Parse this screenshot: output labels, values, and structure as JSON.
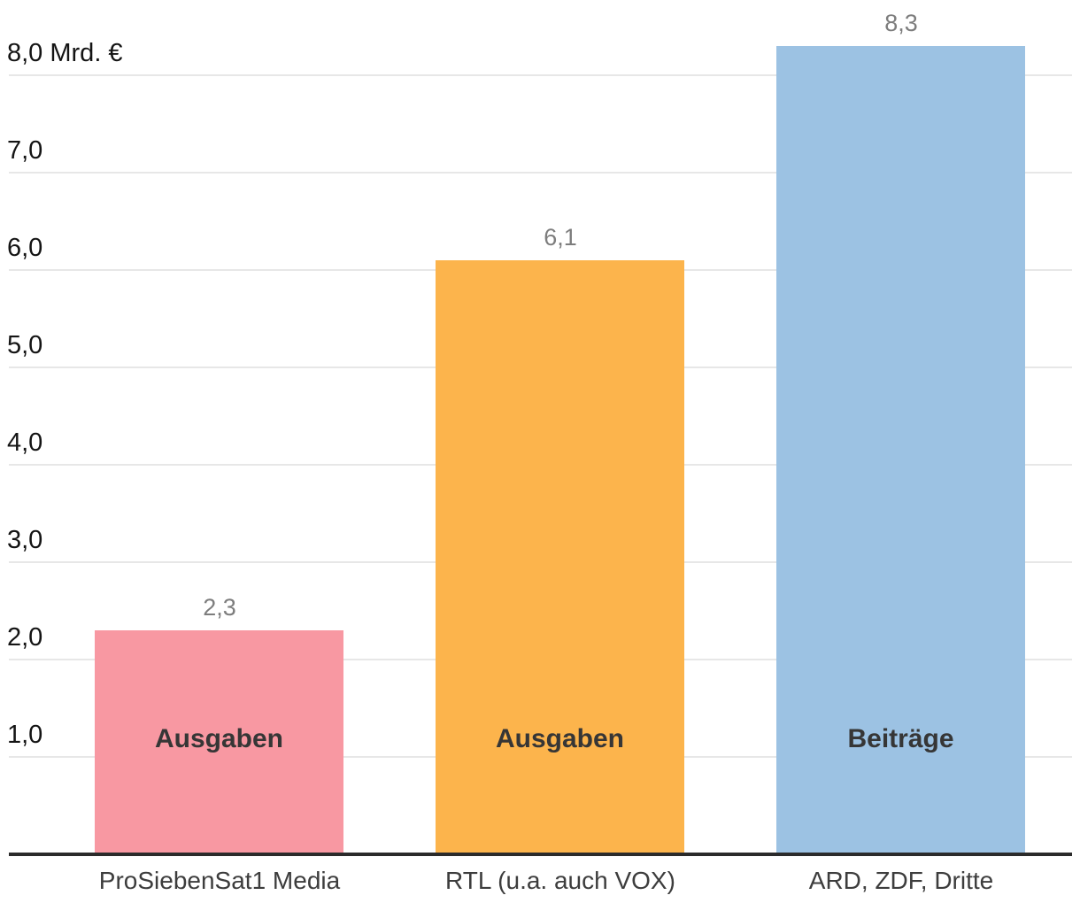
{
  "chart_data": {
    "type": "bar",
    "title": "",
    "xlabel": "",
    "ylabel": "",
    "unit_label": "Mrd. €",
    "ylim": [
      0,
      8.7
    ],
    "grid": true,
    "legend": "none",
    "categories": [
      "ProSiebenSat1 Media",
      "RTL (u.a. auch VOX)",
      "ARD, ZDF, Dritte"
    ],
    "values": [
      2.3,
      6.1,
      8.3
    ],
    "value_labels": [
      "2,3",
      "6,1",
      "8,3"
    ],
    "bar_inner_labels": [
      "Ausgaben",
      "Ausgaben",
      "Beiträge"
    ],
    "bar_colors": [
      "#F898A2",
      "#FCB44C",
      "#9CC2E3"
    ],
    "y_ticks": [
      {
        "value": 1,
        "label": "1,0"
      },
      {
        "value": 2,
        "label": "2,0"
      },
      {
        "value": 3,
        "label": "3,0"
      },
      {
        "value": 4,
        "label": "4,0"
      },
      {
        "value": 5,
        "label": "5,0"
      },
      {
        "value": 6,
        "label": "6,0"
      },
      {
        "value": 7,
        "label": "7,0"
      },
      {
        "value": 8,
        "label": "8,0 Mrd. €"
      }
    ]
  },
  "colors": {
    "background": "#ffffff",
    "gridline": "#e7e7e7",
    "axis_line": "#2b2b2b",
    "tick_label": "#141414",
    "value_label": "#7d7d7d",
    "bar_inner_label": "#363636",
    "category_label": "#3d3d3d"
  }
}
